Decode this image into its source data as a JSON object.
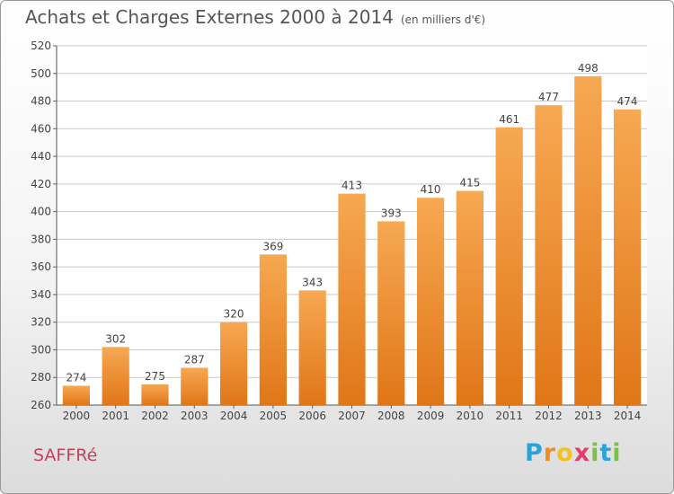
{
  "title": "Achats et Charges Externes 2000 à 2014",
  "unit_label": "(en milliers d'€)",
  "commune": "SAFFRé",
  "brand": {
    "letters": [
      "P",
      "r",
      "o",
      "x",
      "i",
      "t",
      "i"
    ],
    "colors": [
      "#2aa3d9",
      "#f28c1e",
      "#f2c21e",
      "#e53b6f",
      "#7cc242",
      "#2aa3d9",
      "#7cc242"
    ]
  },
  "colors": {
    "bar_top": "#f7a852",
    "bar_bottom": "#e07618",
    "grid": "#c9c9c9"
  },
  "chart_data": {
    "type": "bar",
    "categories": [
      "2000",
      "2001",
      "2002",
      "2003",
      "2004",
      "2005",
      "2006",
      "2007",
      "2008",
      "2009",
      "2010",
      "2011",
      "2012",
      "2013",
      "2014"
    ],
    "values": [
      274,
      302,
      275,
      287,
      320,
      369,
      343,
      413,
      393,
      410,
      415,
      461,
      477,
      498,
      474
    ],
    "ylim": [
      260,
      520
    ],
    "yticks": [
      260,
      280,
      300,
      320,
      340,
      360,
      380,
      400,
      420,
      440,
      460,
      480,
      500,
      520
    ],
    "grid": true
  }
}
